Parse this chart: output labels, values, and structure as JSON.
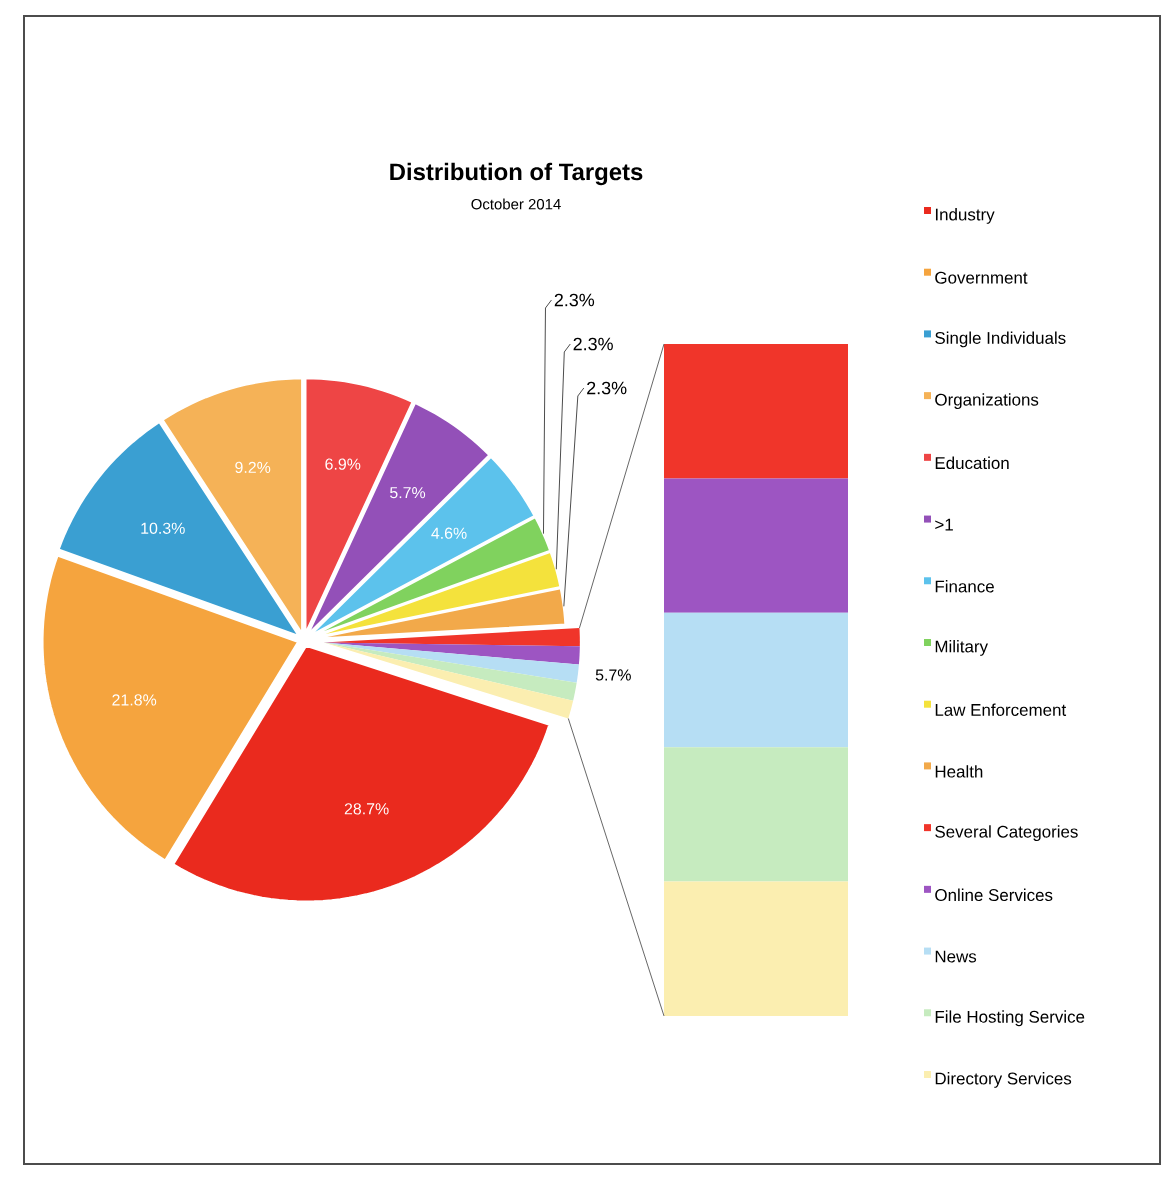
{
  "chart_data": {
    "type": "pie",
    "title": "Distribution of Targets",
    "subtitle": "October 2014",
    "categories": [
      "Industry",
      "Government",
      "Single Individuals",
      "Organizations",
      "Education",
      ">1",
      "Finance",
      "Military",
      "Law Enforcement",
      "Health",
      "Several Categories",
      "Online Services",
      "News",
      "File Hosting Service",
      "Directory Services"
    ],
    "values": [
      28.7,
      21.8,
      10.3,
      9.2,
      6.9,
      5.7,
      4.6,
      2.3,
      2.3,
      2.3,
      1.14,
      1.14,
      1.14,
      1.14,
      1.14
    ],
    "colors": [
      "#ea2a1e",
      "#f5a43e",
      "#3a9fd2",
      "#f5b257",
      "#ee4545",
      "#9350b8",
      "#5cc2ec",
      "#80d25e",
      "#f4e23c",
      "#f2a94a",
      "#f0352a",
      "#9d55c2",
      "#b6def4",
      "#c6ebbf",
      "#fbeeb0"
    ],
    "value_labels": [
      "28.7%",
      "21.8%",
      "10.3%",
      "9.2%",
      "6.9%",
      "5.7%",
      "4.6%",
      "2.3%",
      "2.3%",
      "2.3%",
      null,
      null,
      null,
      null,
      null
    ],
    "annotations": [
      "5.7%"
    ],
    "legend": "right"
  }
}
